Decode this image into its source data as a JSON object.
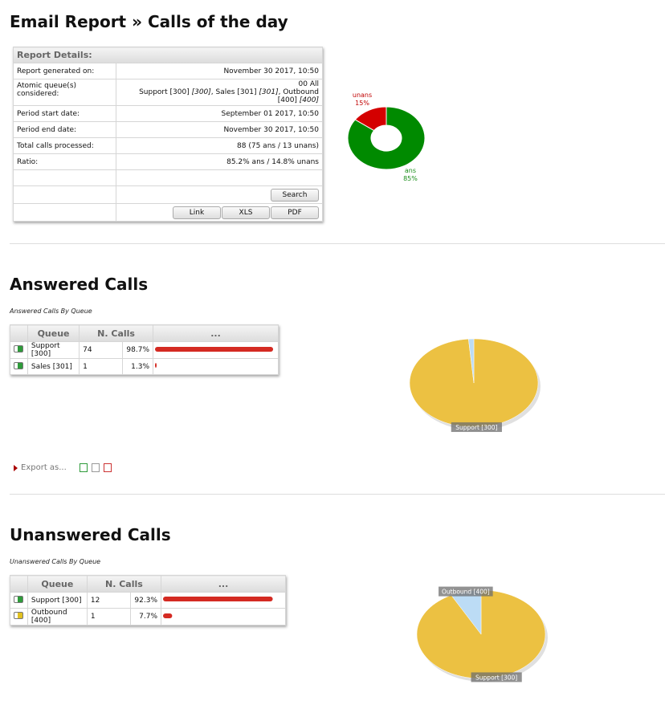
{
  "title": "Email Report » Calls of the day",
  "report": {
    "heading": "Report Details:",
    "rows": [
      {
        "label": "Report generated on:",
        "value": "November 30 2017, 10:50"
      },
      {
        "label": "Atomic queue(s) considered:",
        "value": "00 All",
        "segments": [
          "Support [300] ",
          "[300]",
          ", Sales [301] ",
          "[301]",
          ", Outbound [400] ",
          "[400]"
        ]
      },
      {
        "label": "Period start date:",
        "value": "September 01 2017, 10:50"
      },
      {
        "label": "Period end date:",
        "value": "November 30 2017, 10:50"
      },
      {
        "label": "Total calls processed:",
        "value": "88 (75 ans / 13 unans)"
      },
      {
        "label": "Ratio:",
        "value": "85.2% ans / 14.8% unans"
      }
    ],
    "search_button": "Search",
    "export_buttons": [
      "Link",
      "XLS",
      "PDF"
    ]
  },
  "summary_chart": {
    "type": "donut",
    "slices": [
      {
        "name": "unans",
        "value": 15,
        "value_label": "15%",
        "color": "#d40000",
        "label_color": "#c00000"
      },
      {
        "name": "ans",
        "value": 85,
        "value_label": "85%",
        "color": "#008a00",
        "label_color": "#1a8f1a"
      }
    ]
  },
  "sections": [
    {
      "title": "Answered Calls",
      "subtitle": "Answered Calls By Queue",
      "columns": [
        "Queue",
        "N. Calls",
        "..."
      ],
      "rows": [
        {
          "queue": "Support [300]",
          "calls": 74,
          "percent": 98.7,
          "percent_label": "98.7%",
          "icon_color": "#2e9b3a"
        },
        {
          "queue": "Sales [301]",
          "calls": 1,
          "percent": 1.3,
          "percent_label": "1.3%",
          "icon_color": "#2e9b3a"
        }
      ],
      "pie": {
        "type": "pie",
        "colors": [
          "#ecc142",
          "#bcdcf5"
        ],
        "labeled": [
          0
        ]
      },
      "export_label": "Export as..."
    },
    {
      "title": "Unanswered Calls",
      "subtitle": "Unanswered Calls By Queue",
      "columns": [
        "Queue",
        "N. Calls",
        "..."
      ],
      "rows": [
        {
          "queue": "Support [300]",
          "calls": 12,
          "percent": 92.3,
          "percent_label": "92.3%",
          "icon_color": "#2e9b3a"
        },
        {
          "queue": "Outbound [400]",
          "calls": 1,
          "percent": 7.7,
          "percent_label": "7.7%",
          "icon_color": "#e0c020"
        }
      ],
      "pie": {
        "type": "pie",
        "colors": [
          "#ecc142",
          "#bcdcf5"
        ],
        "labeled": [
          0,
          1
        ]
      }
    }
  ]
}
